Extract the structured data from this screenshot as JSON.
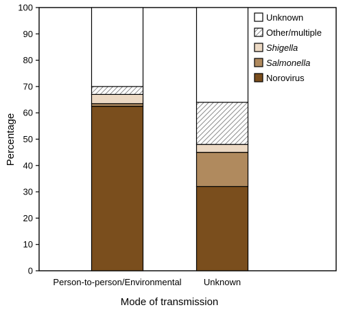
{
  "chart_data": {
    "type": "bar",
    "stacked": true,
    "xlabel": "Mode of transmission",
    "ylabel": "Percentage",
    "ylim": [
      0,
      100
    ],
    "yticks": [
      0,
      10,
      20,
      30,
      40,
      50,
      60,
      70,
      80,
      90,
      100
    ],
    "categories": [
      "Person-to-person/Environmental",
      "Unknown"
    ],
    "series": [
      {
        "name": "Norovirus",
        "values": [
          62.5,
          32
        ],
        "color": "#7a4e1d",
        "italic": false
      },
      {
        "name": "Salmonella",
        "values": [
          1,
          13
        ],
        "color": "#b08a5e",
        "italic": true
      },
      {
        "name": "Shigella",
        "values": [
          3.5,
          3
        ],
        "color": "#ecd9c4",
        "italic": true
      },
      {
        "name": "Other/multiple",
        "values": [
          3,
          16
        ],
        "pattern": "hatch",
        "italic": false
      },
      {
        "name": "Unknown",
        "values": [
          30,
          36
        ],
        "color": "#ffffff",
        "italic": false
      }
    ],
    "legend_position": "top-right",
    "grid": false
  }
}
